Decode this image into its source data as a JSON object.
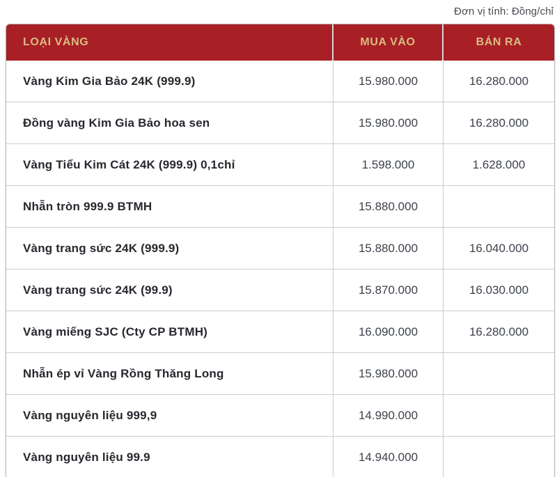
{
  "page": {
    "unit_note": "Đơn vị tính: Đồng/chỉ"
  },
  "colors": {
    "header_bg": "#a81f26",
    "header_text": "#d9bd82",
    "row_border": "#cccccc",
    "label_text": "#27272e",
    "value_text": "#3d424b"
  },
  "table": {
    "headers": [
      "LOẠI VÀNG",
      "MUA VÀO",
      "BÁN RA"
    ],
    "rows": [
      {
        "name": "Vàng Kim Gia Bảo 24K (999.9)",
        "buy": "15.980.000",
        "sell": "16.280.000"
      },
      {
        "name": "Đồng vàng Kim Gia Bảo hoa sen",
        "buy": "15.980.000",
        "sell": "16.280.000"
      },
      {
        "name": "Vàng Tiểu Kim Cát 24K (999.9) 0,1chỉ",
        "buy": "1.598.000",
        "sell": "1.628.000"
      },
      {
        "name": "Nhẫn tròn 999.9 BTMH",
        "buy": "15.880.000",
        "sell": ""
      },
      {
        "name": "Vàng trang sức 24K (999.9)",
        "buy": "15.880.000",
        "sell": "16.040.000"
      },
      {
        "name": "Vàng trang sức 24K (99.9)",
        "buy": "15.870.000",
        "sell": "16.030.000"
      },
      {
        "name": "Vàng miếng SJC (Cty CP BTMH)",
        "buy": "16.090.000",
        "sell": "16.280.000"
      },
      {
        "name": "Nhẫn ép vỉ Vàng Rồng Thăng Long",
        "buy": "15.980.000",
        "sell": ""
      },
      {
        "name": "Vàng nguyên liệu 999,9",
        "buy": "14.990.000",
        "sell": ""
      },
      {
        "name": "Vàng nguyên liệu 99.9",
        "buy": "14.940.000",
        "sell": ""
      }
    ]
  }
}
